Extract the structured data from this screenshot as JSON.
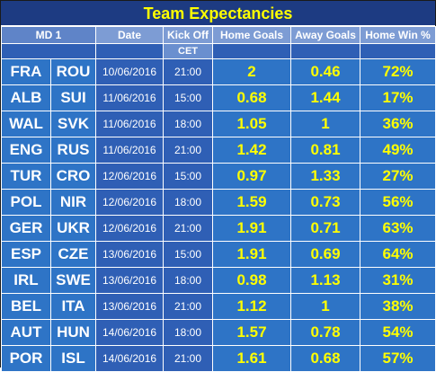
{
  "title": "Team Expectancies",
  "headers": {
    "md": "MD 1",
    "date": "Date",
    "kickoff": "Kick Off",
    "home_goals": "Home Goals",
    "away_goals": "Away Goals",
    "home_win": "Home Win %"
  },
  "subheader": {
    "timezone": "CET"
  },
  "matches": [
    {
      "home": "FRA",
      "away": "ROU",
      "date": "10/06/2016",
      "kickoff": "21:00",
      "home_goals": "2",
      "away_goals": "0.46",
      "home_win": "72%"
    },
    {
      "home": "ALB",
      "away": "SUI",
      "date": "11/06/2016",
      "kickoff": "15:00",
      "home_goals": "0.68",
      "away_goals": "1.44",
      "home_win": "17%"
    },
    {
      "home": "WAL",
      "away": "SVK",
      "date": "11/06/2016",
      "kickoff": "18:00",
      "home_goals": "1.05",
      "away_goals": "1",
      "home_win": "36%"
    },
    {
      "home": "ENG",
      "away": "RUS",
      "date": "11/06/2016",
      "kickoff": "21:00",
      "home_goals": "1.42",
      "away_goals": "0.81",
      "home_win": "49%"
    },
    {
      "home": "TUR",
      "away": "CRO",
      "date": "12/06/2016",
      "kickoff": "15:00",
      "home_goals": "0.97",
      "away_goals": "1.33",
      "home_win": "27%"
    },
    {
      "home": "POL",
      "away": "NIR",
      "date": "12/06/2016",
      "kickoff": "18:00",
      "home_goals": "1.59",
      "away_goals": "0.73",
      "home_win": "56%"
    },
    {
      "home": "GER",
      "away": "UKR",
      "date": "12/06/2016",
      "kickoff": "21:00",
      "home_goals": "1.91",
      "away_goals": "0.71",
      "home_win": "63%"
    },
    {
      "home": "ESP",
      "away": "CZE",
      "date": "13/06/2016",
      "kickoff": "15:00",
      "home_goals": "1.91",
      "away_goals": "0.69",
      "home_win": "64%"
    },
    {
      "home": "IRL",
      "away": "SWE",
      "date": "13/06/2016",
      "kickoff": "18:00",
      "home_goals": "0.98",
      "away_goals": "1.13",
      "home_win": "31%"
    },
    {
      "home": "BEL",
      "away": "ITA",
      "date": "13/06/2016",
      "kickoff": "21:00",
      "home_goals": "1.12",
      "away_goals": "1",
      "home_win": "38%"
    },
    {
      "home": "AUT",
      "away": "HUN",
      "date": "14/06/2016",
      "kickoff": "18:00",
      "home_goals": "1.57",
      "away_goals": "0.78",
      "home_win": "54%"
    },
    {
      "home": "POR",
      "away": "ISL",
      "date": "14/06/2016",
      "kickoff": "21:00",
      "home_goals": "1.61",
      "away_goals": "0.68",
      "home_win": "57%"
    }
  ]
}
